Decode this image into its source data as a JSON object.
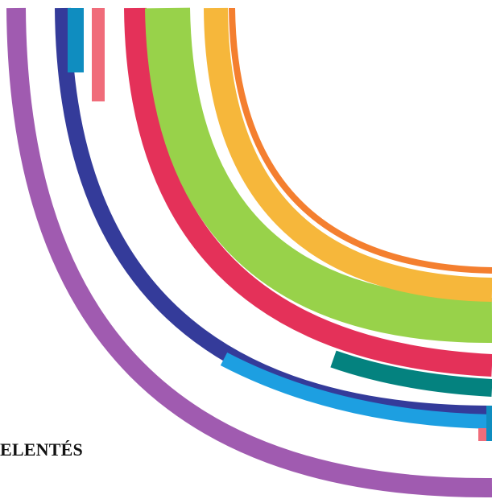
{
  "document": {
    "heading_fragment": "ELENTÉS"
  },
  "decoration": {
    "arc_colors": {
      "purple": "#a05bb0",
      "navy": "#343b9a",
      "sky": "#1d9fe1",
      "crimson": "#e43159",
      "teal": "#04827f",
      "lime": "#98d24a",
      "gold": "#f6b73b",
      "orange": "#f47f2f",
      "pink": "#f06c7a",
      "steelblue": "#0f8dc0"
    }
  }
}
